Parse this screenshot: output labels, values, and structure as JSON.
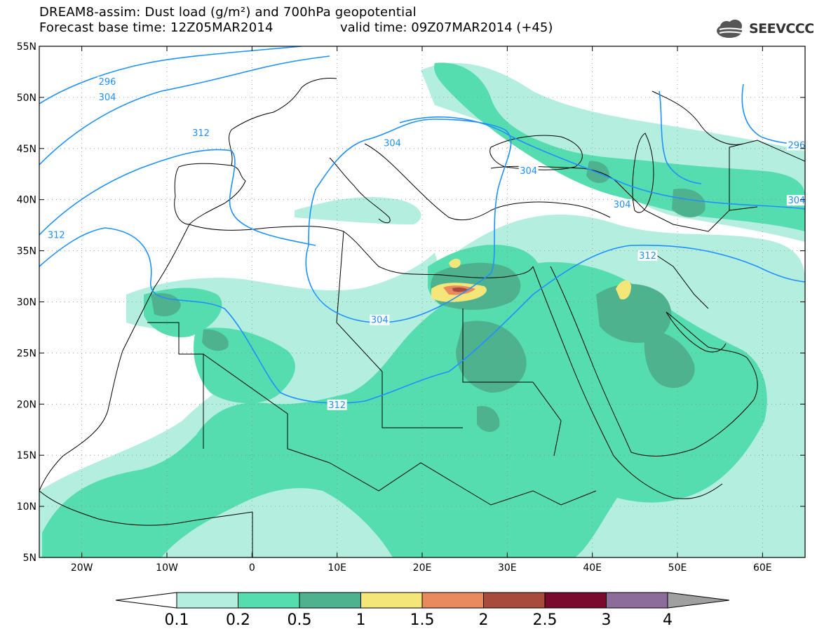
{
  "header": {
    "title_line1": "DREAM8-assim: Dust load (g/m²) and 700hPa geopotential",
    "title_line2": "Forecast base time: 12Z05MAR2014",
    "valid_time": "valid time: 09Z07MAR2014 (+45)",
    "logo_text": "SEEVCCC"
  },
  "map": {
    "projection": "lat-lon",
    "lon_range": [
      -25,
      65
    ],
    "lat_range": [
      5,
      55
    ],
    "lat_ticks": [
      "55N",
      "50N",
      "45N",
      "40N",
      "35N",
      "30N",
      "25N",
      "20N",
      "15N",
      "10N",
      "5N"
    ],
    "lon_ticks": [
      "20W",
      "10W",
      "0",
      "10E",
      "20E",
      "30E",
      "40E",
      "50E",
      "60E"
    ],
    "lat_values": [
      55,
      50,
      45,
      40,
      35,
      30,
      25,
      20,
      15,
      10,
      5
    ],
    "lon_values": [
      -20,
      -10,
      0,
      10,
      20,
      30,
      40,
      50,
      60
    ],
    "grid": "dotted",
    "contour_color": "#1e90ff",
    "contour_labels": [
      {
        "text": "296",
        "lon": -17,
        "lat": 51.5
      },
      {
        "text": "304",
        "lon": -17,
        "lat": 50
      },
      {
        "text": "304",
        "lon": 16.5,
        "lat": 45.5
      },
      {
        "text": "304",
        "lon": 32.5,
        "lat": 42.8
      },
      {
        "text": "304",
        "lon": 43.5,
        "lat": 39.5
      },
      {
        "text": "296",
        "lon": 64,
        "lat": 45.3
      },
      {
        "text": "304",
        "lon": 64,
        "lat": 39.9
      },
      {
        "text": "312",
        "lon": -6,
        "lat": 46.5
      },
      {
        "text": "312",
        "lon": -23,
        "lat": 36.5
      },
      {
        "text": "312",
        "lon": 46.5,
        "lat": 34.5
      },
      {
        "text": "304",
        "lon": 15,
        "lat": 28.2
      },
      {
        "text": "312",
        "lon": 10,
        "lat": 19.9
      }
    ]
  },
  "colorbar": {
    "labels": [
      "0.1",
      "0.2",
      "0.5",
      "1",
      "1.5",
      "2",
      "2.5",
      "3",
      "4"
    ],
    "colors": [
      "#b3eedf",
      "#55dcaf",
      "#4fb28f",
      "#f5e67a",
      "#e88a5e",
      "#a94b3c",
      "#7a0b2e",
      "#8c6c9b"
    ],
    "under_color": "#ffffff",
    "over_color": "#a0a0a0"
  }
}
